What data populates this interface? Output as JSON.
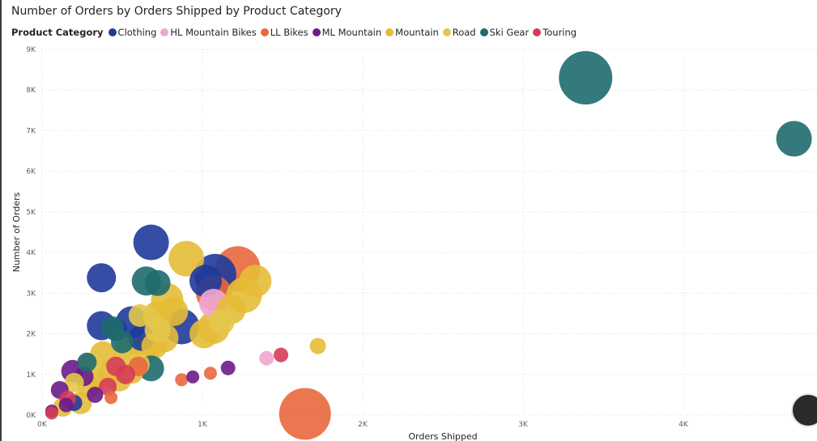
{
  "chart_data": {
    "type": "scatter",
    "title": "Number of Orders by Orders Shipped by Product Category",
    "xlabel": "Orders Shipped",
    "ylabel": "Number of Orders",
    "xlim": [
      0,
      4800
    ],
    "ylim": [
      0,
      9000
    ],
    "x_ticks": [
      "0K",
      "1K",
      "2K",
      "3K",
      "4K"
    ],
    "y_ticks": [
      "0K",
      "1K",
      "2K",
      "3K",
      "4K",
      "5K",
      "6K",
      "7K",
      "8K",
      "9K"
    ],
    "grid": true,
    "legend_title": "Product Category",
    "legend_position": "top-left",
    "series": [
      {
        "name": "Clothing",
        "color": "#1f3a9a",
        "points": [
          [
            680,
            4250,
            22
          ],
          [
            1080,
            3450,
            26
          ],
          [
            370,
            3380,
            18
          ],
          [
            870,
            2180,
            22
          ],
          [
            560,
            2280,
            20
          ],
          [
            370,
            2200,
            18
          ],
          [
            1020,
            3300,
            20
          ],
          [
            620,
            1900,
            16
          ],
          [
            200,
            300,
            10
          ],
          [
            460,
            2100,
            14
          ]
        ]
      },
      {
        "name": "HL Mountain Bikes",
        "color": "#f0a6d2",
        "points": [
          [
            1070,
            2750,
            18
          ],
          [
            1400,
            1400,
            9
          ]
        ]
      },
      {
        "name": "LL Bikes",
        "color": "#e8683c",
        "points": [
          [
            1220,
            3600,
            28
          ],
          [
            1640,
            30,
            32
          ],
          [
            1070,
            3000,
            22
          ],
          [
            870,
            870,
            8
          ],
          [
            1050,
            1030,
            8
          ],
          [
            430,
            430,
            8
          ],
          [
            600,
            1200,
            12
          ]
        ]
      },
      {
        "name": "ML Mountain",
        "color": "#6b1b8a",
        "points": [
          [
            1160,
            1160,
            9
          ],
          [
            940,
            940,
            8
          ],
          [
            190,
            1080,
            14
          ],
          [
            110,
            620,
            11
          ],
          [
            260,
            950,
            12
          ],
          [
            330,
            500,
            10
          ],
          [
            60,
            100,
            8
          ],
          [
            150,
            250,
            9
          ]
        ]
      },
      {
        "name": "Mountain",
        "color": "#e6bc37",
        "points": [
          [
            900,
            3850,
            22
          ],
          [
            1330,
            3300,
            20
          ],
          [
            1260,
            2950,
            22
          ],
          [
            780,
            2850,
            20
          ],
          [
            720,
            2450,
            18
          ],
          [
            1070,
            2150,
            20
          ],
          [
            1010,
            2000,
            18
          ],
          [
            820,
            2550,
            18
          ],
          [
            640,
            1600,
            18
          ],
          [
            540,
            1550,
            18
          ],
          [
            380,
            1500,
            16
          ],
          [
            420,
            1050,
            16
          ],
          [
            480,
            900,
            16
          ],
          [
            290,
            700,
            14
          ],
          [
            240,
            300,
            14
          ],
          [
            130,
            200,
            12
          ],
          [
            760,
            1900,
            18
          ],
          [
            700,
            1700,
            16
          ],
          [
            1720,
            1700,
            10
          ],
          [
            560,
            1050,
            14
          ],
          [
            340,
            900,
            14
          ],
          [
            1180,
            2600,
            18
          ]
        ]
      },
      {
        "name": "Road",
        "color": "#e3c84a",
        "points": [
          [
            610,
            2450,
            14
          ],
          [
            1120,
            2300,
            16
          ],
          [
            720,
            2100,
            16
          ],
          [
            600,
            1250,
            14
          ],
          [
            300,
            1250,
            14
          ],
          [
            200,
            800,
            12
          ]
        ]
      },
      {
        "name": "Ski Gear",
        "color": "#1e6b6e",
        "points": [
          [
            3390,
            8300,
            33
          ],
          [
            4690,
            6800,
            22
          ],
          [
            650,
            3300,
            18
          ],
          [
            720,
            3250,
            16
          ],
          [
            680,
            1150,
            16
          ],
          [
            440,
            2150,
            14
          ],
          [
            500,
            1800,
            14
          ],
          [
            280,
            1300,
            12
          ]
        ]
      },
      {
        "name": "Touring",
        "color": "#d63c58",
        "points": [
          [
            1490,
            1480,
            9
          ],
          [
            460,
            1200,
            12
          ],
          [
            520,
            1000,
            12
          ],
          [
            160,
            400,
            10
          ],
          [
            60,
            50,
            8
          ],
          [
            410,
            700,
            11
          ]
        ]
      }
    ]
  }
}
